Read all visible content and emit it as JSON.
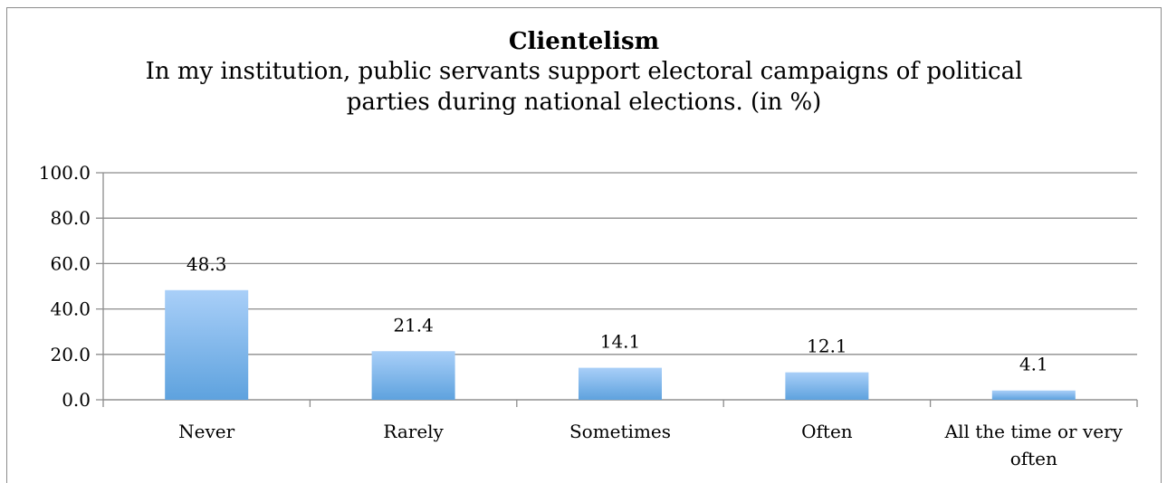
{
  "chart_data": {
    "type": "bar",
    "title": "Clientelism",
    "subtitle_lines": [
      "In my institution, public servants support electoral campaigns of political",
      "parties during national elections. (in %)"
    ],
    "categories": [
      [
        "Never"
      ],
      [
        "Rarely"
      ],
      [
        "Sometimes"
      ],
      [
        "Often"
      ],
      [
        "All the time or very",
        "often"
      ]
    ],
    "values": [
      48.3,
      21.4,
      14.1,
      12.1,
      4.1
    ],
    "data_labels": [
      "48.3",
      "21.4",
      "14.1",
      "12.1",
      "4.1"
    ],
    "ylim": [
      0,
      100
    ],
    "yticks": [
      0,
      20,
      40,
      60,
      80,
      100
    ],
    "ytick_labels": [
      "0.0",
      "20.0",
      "40.0",
      "60.0",
      "80.0",
      "100.0"
    ],
    "grid": true,
    "legend": "none",
    "colors": {
      "bar_top": "#a9cff8",
      "bar_bottom": "#5ea2de",
      "grid": "#8c8c8c",
      "axis": "#8c8c8c"
    }
  }
}
